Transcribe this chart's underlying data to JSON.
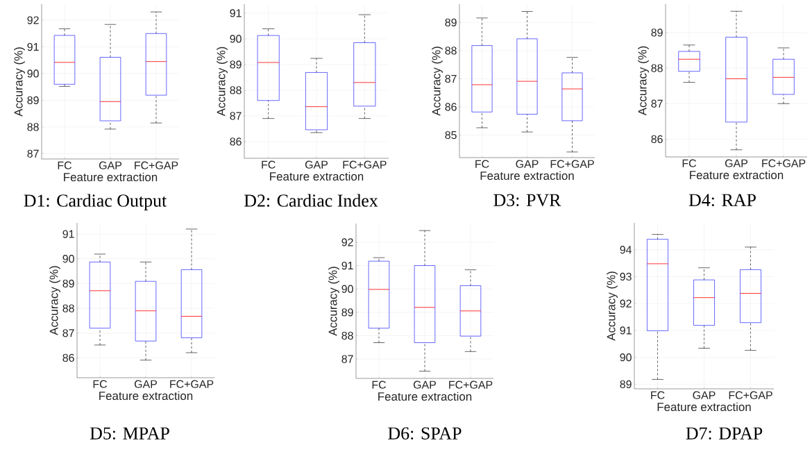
{
  "chart_data": [
    {
      "type": "box",
      "title": "D1: Cardiac Output",
      "xlabel": "Feature extraction",
      "ylabel": "Accuracy (%)",
      "categories": [
        "FC",
        "GAP",
        "FC+GAP"
      ],
      "ylim": [
        86.8,
        92.6
      ],
      "yticks": [
        87,
        88,
        89,
        90,
        91,
        92
      ],
      "grid": true,
      "series": [
        {
          "color": "#0000ff",
          "boxes": [
            {
              "low": 89.52,
              "q1": 89.6,
              "median": 90.42,
              "q3": 91.43,
              "high": 91.68
            },
            {
              "low": 87.92,
              "q1": 88.23,
              "median": 88.95,
              "q3": 90.61,
              "high": 91.84
            },
            {
              "low": 88.15,
              "q1": 89.19,
              "median": 90.45,
              "q3": 91.5,
              "high": 92.31
            }
          ]
        }
      ]
    },
    {
      "type": "box",
      "title": "D2: Cardiac Index",
      "xlabel": "Feature extraction",
      "ylabel": "Accuracy (%)",
      "categories": [
        "FC",
        "GAP",
        "FC+GAP"
      ],
      "ylim": [
        85.35,
        91.35
      ],
      "yticks": [
        86,
        87,
        88,
        89,
        90,
        91
      ],
      "grid": true,
      "series": [
        {
          "color": "#0000ff",
          "boxes": [
            {
              "low": 86.9,
              "q1": 87.6,
              "median": 89.08,
              "q3": 90.13,
              "high": 90.39
            },
            {
              "low": 86.35,
              "q1": 86.46,
              "median": 87.36,
              "q3": 88.69,
              "high": 89.24
            },
            {
              "low": 86.9,
              "q1": 87.38,
              "median": 88.3,
              "q3": 89.85,
              "high": 90.94
            }
          ]
        }
      ]
    },
    {
      "type": "box",
      "title": "D3: PVR",
      "xlabel": "Feature extraction",
      "ylabel": "Accuracy (%)",
      "categories": [
        "FC",
        "GAP",
        "FC+GAP"
      ],
      "ylim": [
        84.2,
        89.65
      ],
      "yticks": [
        85,
        86,
        87,
        88,
        89
      ],
      "grid": true,
      "series": [
        {
          "color": "#0000ff",
          "boxes": [
            {
              "low": 85.26,
              "q1": 85.82,
              "median": 86.79,
              "q3": 88.18,
              "high": 89.16
            },
            {
              "low": 85.11,
              "q1": 85.74,
              "median": 86.91,
              "q3": 88.42,
              "high": 89.39
            },
            {
              "low": 84.4,
              "q1": 85.51,
              "median": 86.64,
              "q3": 87.21,
              "high": 87.76
            }
          ]
        }
      ]
    },
    {
      "type": "box",
      "title": "D4: RAP",
      "xlabel": "Feature extraction",
      "ylabel": "Accuracy (%)",
      "categories": [
        "FC",
        "GAP",
        "FC+GAP"
      ],
      "ylim": [
        85.5,
        89.8
      ],
      "yticks": [
        86,
        87,
        88,
        89
      ],
      "grid": true,
      "series": [
        {
          "color": "#0000ff",
          "boxes": [
            {
              "low": 87.6,
              "q1": 87.91,
              "median": 88.25,
              "q3": 88.47,
              "high": 88.65
            },
            {
              "low": 85.7,
              "q1": 86.48,
              "median": 87.7,
              "q3": 88.87,
              "high": 89.6
            },
            {
              "low": 87.0,
              "q1": 87.26,
              "median": 87.74,
              "q3": 88.25,
              "high": 88.57
            }
          ]
        }
      ]
    },
    {
      "type": "box",
      "title": "D5: MPAP",
      "xlabel": "Feature extraction",
      "ylabel": "Accuracy (%)",
      "categories": [
        "FC",
        "GAP",
        "FC+GAP"
      ],
      "ylim": [
        85.2,
        91.45
      ],
      "yticks": [
        86,
        87,
        88,
        89,
        90,
        91
      ],
      "grid": true,
      "series": [
        {
          "color": "#0000ff",
          "boxes": [
            {
              "low": 86.52,
              "q1": 87.2,
              "median": 88.71,
              "q3": 89.87,
              "high": 90.19
            },
            {
              "low": 85.91,
              "q1": 86.68,
              "median": 87.9,
              "q3": 89.09,
              "high": 89.87
            },
            {
              "low": 86.21,
              "q1": 86.81,
              "median": 87.68,
              "q3": 89.56,
              "high": 91.2
            }
          ]
        }
      ]
    },
    {
      "type": "box",
      "title": "D6: SPAP",
      "xlabel": "Feature extraction",
      "ylabel": "Accuracy (%)",
      "categories": [
        "FC",
        "GAP",
        "FC+GAP"
      ],
      "ylim": [
        86.17,
        92.8
      ],
      "yticks": [
        87,
        88,
        89,
        90,
        91,
        92
      ],
      "grid": true,
      "series": [
        {
          "color": "#0000ff",
          "boxes": [
            {
              "low": 87.7,
              "q1": 88.32,
              "median": 89.98,
              "q3": 91.19,
              "high": 91.34
            },
            {
              "low": 86.48,
              "q1": 87.7,
              "median": 89.21,
              "q3": 91.0,
              "high": 92.5
            },
            {
              "low": 87.32,
              "q1": 87.98,
              "median": 89.06,
              "q3": 90.14,
              "high": 90.82
            }
          ]
        }
      ]
    },
    {
      "type": "box",
      "title": "D7: DPAP",
      "xlabel": "Feature extraction",
      "ylabel": "Accuracy (%)",
      "categories": [
        "FC",
        "GAP",
        "FC+GAP"
      ],
      "ylim": [
        88.83,
        95.0
      ],
      "yticks": [
        89,
        90,
        91,
        92,
        93,
        94
      ],
      "grid": true,
      "series": [
        {
          "color": "#0000ff",
          "boxes": [
            {
              "low": 89.18,
              "q1": 90.99,
              "median": 93.48,
              "q3": 94.39,
              "high": 94.57
            },
            {
              "low": 90.34,
              "q1": 91.19,
              "median": 92.22,
              "q3": 92.88,
              "high": 93.33
            },
            {
              "low": 90.26,
              "q1": 91.29,
              "median": 92.38,
              "q3": 93.26,
              "high": 94.1
            }
          ]
        }
      ]
    }
  ]
}
